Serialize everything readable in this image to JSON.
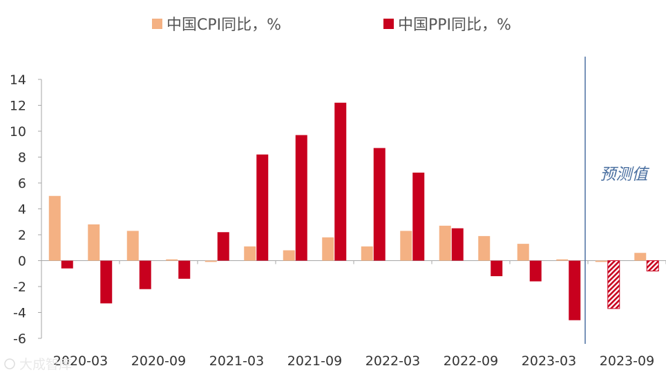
{
  "chart_data": {
    "type": "bar",
    "categories": [
      "2020-03",
      "2020-06",
      "2020-09",
      "2020-12",
      "2021-03",
      "2021-06",
      "2021-09",
      "2021-12",
      "2022-03",
      "2022-06",
      "2022-09",
      "2022-12",
      "2023-03",
      "2023-06",
      "2023-09",
      "2023-12"
    ],
    "x_tick_labels": [
      "2020-03",
      "2020-09",
      "2021-03",
      "2021-09",
      "2022-03",
      "2022-09",
      "2023-03",
      "2023-09"
    ],
    "series": [
      {
        "name": "中国CPI同比，%",
        "color": "#f4b183",
        "values": [
          5.0,
          2.8,
          2.3,
          0.1,
          -0.1,
          1.1,
          0.8,
          1.8,
          1.1,
          2.3,
          2.7,
          1.9,
          1.3,
          0.1,
          -0.1,
          0.6
        ]
      },
      {
        "name": "中国PPI同比，%",
        "color": "#c8001e",
        "values": [
          -0.6,
          -3.3,
          -2.2,
          -1.4,
          2.2,
          8.2,
          9.7,
          12.2,
          8.7,
          6.8,
          2.5,
          -1.2,
          -1.6,
          -4.6,
          -3.7,
          -0.8
        ]
      }
    ],
    "forecast_start_index": 14,
    "annotation": "预测值",
    "ylim": [
      -6,
      14
    ],
    "yticks": [
      -6,
      -4,
      -2,
      0,
      2,
      4,
      6,
      8,
      10,
      12,
      14
    ],
    "title": "",
    "xlabel": "",
    "ylabel": "",
    "legend_position": "top",
    "grid": false,
    "forecast_line_color": "#4a6fa0"
  },
  "watermark": "大成智库"
}
